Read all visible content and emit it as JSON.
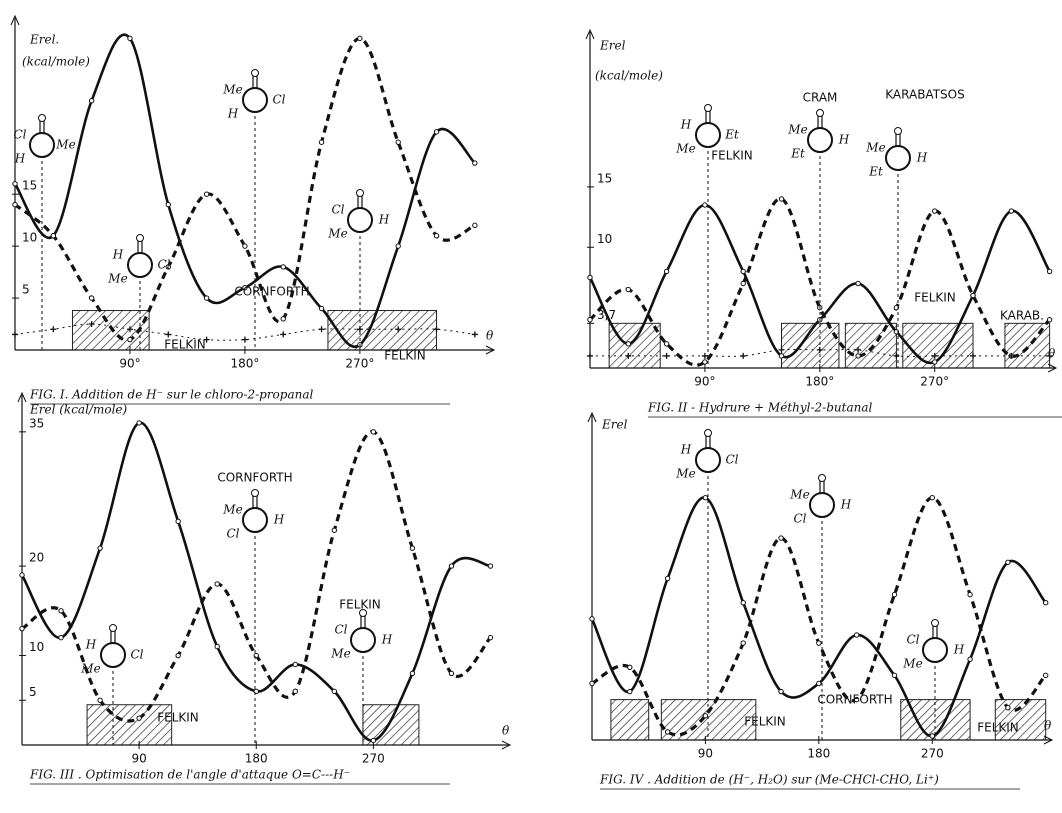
{
  "chart_data": [
    {
      "type": "line",
      "title": "FIG. I. Addition de H⁻ sur le chloro-2-propanal",
      "ylabel": "Erel.",
      "yunit": "(kcal/mole)",
      "xlabel": "θ",
      "x": [
        0,
        30,
        60,
        90,
        120,
        150,
        180,
        210,
        240,
        270,
        300,
        330,
        360
      ],
      "xlim": [
        0,
        375
      ],
      "ylim": [
        0,
        31
      ],
      "xticks": [
        {
          "value": 90,
          "label": "90°"
        },
        {
          "value": 180,
          "label": "180°"
        },
        {
          "value": 270,
          "label": "270°"
        }
      ],
      "yticks": [
        5,
        10,
        15
      ],
      "series": [
        {
          "style": "solid",
          "color": "#111111",
          "values": [
            16,
            11,
            24,
            30,
            14,
            5,
            6,
            8,
            4,
            0.5,
            10,
            21,
            18
          ]
        },
        {
          "style": "dashed",
          "color": "#111111",
          "values": [
            14,
            11,
            5,
            1,
            8,
            15,
            10,
            3,
            20,
            30,
            20,
            11,
            12
          ]
        },
        {
          "style": "crosses",
          "color": "#111111",
          "values": [
            1.5,
            2,
            2.5,
            2,
            1.5,
            1,
            1,
            1.5,
            2,
            2,
            2,
            2,
            1.5
          ]
        }
      ],
      "annotations": [
        "FELKIN",
        "CORNFORTH",
        "FELKIN"
      ],
      "molecules": [
        [
          "Cl",
          "H",
          "Me"
        ],
        [
          "Me",
          "H",
          "Cl"
        ],
        [
          "H",
          "Me",
          "Cl"
        ],
        [
          "Cl",
          "Me",
          "H"
        ]
      ]
    },
    {
      "type": "line",
      "title": "FIG. II - Hydrure + Méthyl-2-butanal",
      "ylabel": "Erel",
      "yunit": "(kcal/mole)",
      "xlabel": "θ",
      "x": [
        0,
        30,
        60,
        90,
        120,
        150,
        180,
        210,
        240,
        270,
        300,
        330,
        360
      ],
      "xlim": [
        0,
        365
      ],
      "ylim": [
        0,
        27
      ],
      "xticks": [
        {
          "value": 90,
          "label": "90°"
        },
        {
          "value": 180,
          "label": "180°"
        },
        {
          "value": 270,
          "label": "270°"
        }
      ],
      "yticks": [
        {
          "value": 3.7,
          "label": "3,7"
        },
        10,
        15
      ],
      "series": [
        {
          "style": "solid",
          "color": "#111111",
          "values": [
            7.5,
            2,
            8,
            13.5,
            8,
            1,
            4,
            7,
            3,
            0.5,
            6,
            13,
            8
          ]
        },
        {
          "style": "dashed",
          "color": "#111111",
          "values": [
            4,
            6.5,
            2,
            0.5,
            7,
            14,
            5,
            1,
            5,
            13,
            6,
            1,
            4
          ]
        },
        {
          "style": "crosses",
          "color": "#111111",
          "values": [
            1,
            1,
            1,
            1,
            1,
            1.5,
            1.5,
            1.5,
            1,
            1,
            1,
            1,
            1
          ]
        }
      ],
      "annotations": [
        "FELKIN",
        "CRAM",
        "KARABATSOS",
        "FELKIN",
        "KARAB."
      ],
      "molecules": [
        [
          "H",
          "Me",
          "Et"
        ],
        [
          "Me",
          "Et",
          "H"
        ],
        [
          "Me",
          "Et",
          "H"
        ]
      ]
    },
    {
      "type": "line",
      "title": "FIG. III . Optimisation de l'angle d'attaque O=C---H⁻",
      "ylabel": "Erel (kcal/mole)",
      "xlabel": "θ",
      "x": [
        0,
        30,
        60,
        90,
        120,
        150,
        180,
        210,
        240,
        270,
        300,
        330,
        360
      ],
      "xlim": [
        0,
        375
      ],
      "ylim": [
        0,
        38
      ],
      "xticks": [
        90,
        180,
        270
      ],
      "yticks": [
        5,
        10,
        20,
        35
      ],
      "series": [
        {
          "style": "solid",
          "color": "#111111",
          "values": [
            19,
            12,
            22,
            36,
            25,
            11,
            6,
            9,
            6,
            0.5,
            8,
            20,
            20
          ]
        },
        {
          "style": "dashed",
          "color": "#111111",
          "values": [
            13,
            15,
            5,
            3,
            10,
            18,
            10,
            6,
            24,
            35,
            22,
            8,
            12
          ]
        }
      ],
      "annotations": [
        "FELKIN",
        "CORNFORTH",
        "FELKIN"
      ],
      "molecules": [
        [
          "H",
          "Me",
          "Cl"
        ],
        [
          "Me",
          "Cl",
          "H"
        ],
        [
          "Cl",
          "Me",
          "H"
        ]
      ]
    },
    {
      "type": "line",
      "title": "FIG. IV . Addition de (H⁻, H₂O) sur (Me-CHCl-CHO, Li⁺)",
      "ylabel": "Erel",
      "xlabel": "θ",
      "x": [
        0,
        30,
        60,
        90,
        120,
        150,
        180,
        210,
        240,
        270,
        300,
        330,
        360
      ],
      "xlim": [
        0,
        365
      ],
      "ylim": [
        0,
        39
      ],
      "xticks": [
        90,
        180,
        270
      ],
      "series": [
        {
          "style": "solid",
          "color": "#111111",
          "values": [
            15,
            6,
            20,
            30,
            17,
            6,
            7,
            13,
            8,
            0.5,
            10,
            22,
            17
          ]
        },
        {
          "style": "dashed",
          "color": "#111111",
          "values": [
            7,
            9,
            1,
            3,
            12,
            25,
            12,
            5,
            18,
            30,
            18,
            4,
            8
          ]
        }
      ],
      "annotations": [
        "FELKIN",
        "CORNFORTH",
        "FELKIN"
      ],
      "molecules": [
        [
          "H",
          "Me",
          "Cl"
        ],
        [
          "Me",
          "Cl",
          "H"
        ],
        [
          "Cl",
          "Me",
          "H"
        ]
      ]
    }
  ]
}
